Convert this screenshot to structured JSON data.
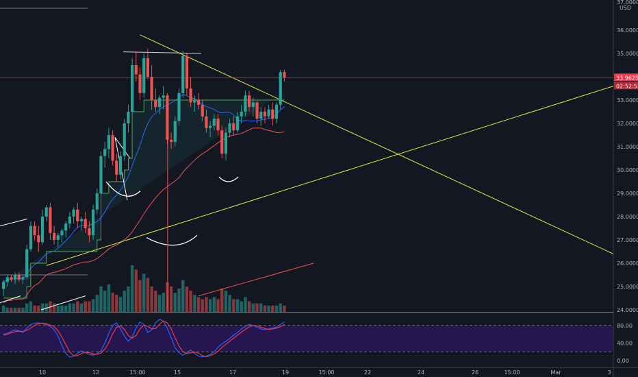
{
  "header": {
    "top_price_label": "37.00000",
    "currency_label": "USD"
  },
  "colors": {
    "background": "#131722",
    "up": "#26a69a",
    "down": "#ef5350",
    "trendline": "#e8e84a",
    "fast_ma": "#2962ff",
    "slow_ma": "#ef5350",
    "stoch_k": "#2962ff",
    "stoch_d": "#f23645",
    "stoch_band": "#2a1657",
    "last_price_bg": "#f23645"
  },
  "chart_data": [
    {
      "type": "candlestick",
      "price_axis": {
        "ticks": [
          "36.00000",
          "35.00000",
          "34.00000",
          "33.00000",
          "32.00000",
          "31.00000",
          "30.00000",
          "29.00000",
          "28.00000",
          "27.00000",
          "26.00000",
          "25.00000",
          "24.00000"
        ],
        "range": [
          24,
          37
        ]
      },
      "time_axis": {
        "ticks": [
          "10",
          "12",
          "15:00",
          "15",
          "17",
          "19",
          "15:00",
          "22",
          "24",
          "26",
          "15:00",
          "Mar",
          "3"
        ]
      },
      "last_price": {
        "value": "33.96258",
        "countdown": "02:52:52"
      },
      "candles": [
        [
          24.9,
          25.3,
          24.6,
          25.2
        ],
        [
          25.2,
          25.5,
          25.0,
          25.4
        ],
        [
          25.4,
          25.5,
          25.2,
          25.3
        ],
        [
          25.3,
          25.6,
          25.1,
          25.5
        ],
        [
          25.5,
          25.6,
          25.2,
          25.3
        ],
        [
          25.3,
          25.5,
          25.1,
          25.4
        ],
        [
          25.4,
          26.8,
          25.3,
          26.6
        ],
        [
          26.6,
          27.8,
          26.5,
          27.6
        ],
        [
          27.6,
          27.8,
          27.0,
          27.2
        ],
        [
          27.2,
          27.6,
          26.5,
          26.9
        ],
        [
          26.9,
          28.3,
          26.8,
          28.0
        ],
        [
          28.0,
          28.5,
          27.8,
          28.4
        ],
        [
          28.4,
          28.6,
          27.0,
          27.3
        ],
        [
          27.3,
          27.6,
          26.8,
          27.0
        ],
        [
          27.0,
          27.3,
          26.7,
          27.2
        ],
        [
          27.2,
          27.5,
          26.9,
          27.4
        ],
        [
          27.4,
          27.8,
          27.1,
          27.7
        ],
        [
          27.7,
          28.2,
          27.5,
          28.0
        ],
        [
          28.0,
          28.4,
          27.7,
          28.3
        ],
        [
          28.3,
          28.6,
          27.5,
          27.8
        ],
        [
          27.8,
          28.0,
          27.4,
          27.9
        ],
        [
          27.9,
          28.2,
          27.3,
          27.5
        ],
        [
          27.5,
          27.8,
          26.9,
          27.2
        ],
        [
          27.2,
          28.5,
          27.0,
          28.3
        ],
        [
          28.3,
          29.2,
          28.1,
          29.0
        ],
        [
          29.0,
          30.8,
          28.9,
          30.6
        ],
        [
          30.6,
          31.2,
          30.1,
          30.9
        ],
        [
          30.9,
          31.8,
          30.5,
          31.5
        ],
        [
          31.5,
          31.7,
          30.2,
          30.4
        ],
        [
          30.4,
          30.7,
          29.5,
          29.8
        ],
        [
          29.8,
          30.8,
          29.6,
          30.6
        ],
        [
          30.6,
          32.2,
          30.4,
          32.0
        ],
        [
          32.0,
          32.8,
          31.6,
          32.5
        ],
        [
          32.5,
          34.8,
          32.3,
          34.5
        ],
        [
          34.5,
          35.1,
          33.8,
          34.1
        ],
        [
          34.1,
          34.4,
          33.0,
          33.3
        ],
        [
          33.3,
          35.0,
          33.1,
          34.8
        ],
        [
          34.8,
          35.2,
          33.9,
          34.0
        ],
        [
          34.0,
          34.5,
          32.6,
          33.0
        ],
        [
          33.0,
          33.5,
          32.5,
          32.7
        ],
        [
          32.7,
          33.2,
          32.4,
          33.1
        ],
        [
          33.1,
          33.6,
          32.6,
          33.2
        ],
        [
          33.2,
          33.3,
          31.1,
          31.3
        ],
        [
          31.3,
          31.6,
          30.9,
          31.2
        ],
        [
          31.2,
          32.3,
          31.0,
          32.1
        ],
        [
          32.1,
          33.5,
          31.9,
          33.3
        ],
        [
          33.3,
          35.1,
          33.1,
          34.9
        ],
        [
          34.9,
          35.0,
          33.2,
          33.5
        ],
        [
          33.5,
          34.0,
          32.7,
          32.9
        ],
        [
          32.9,
          33.2,
          32.5,
          33.0
        ],
        [
          33.0,
          33.3,
          32.6,
          32.8
        ],
        [
          32.8,
          33.0,
          32.1,
          32.3
        ],
        [
          32.3,
          32.6,
          31.6,
          31.8
        ],
        [
          31.8,
          32.1,
          31.4,
          31.9
        ],
        [
          31.9,
          32.4,
          31.7,
          32.2
        ],
        [
          32.2,
          32.4,
          31.5,
          31.7
        ],
        [
          31.7,
          31.9,
          30.5,
          30.7
        ],
        [
          30.7,
          31.8,
          30.4,
          31.6
        ],
        [
          31.6,
          32.2,
          31.4,
          32.0
        ],
        [
          32.0,
          32.3,
          31.5,
          31.7
        ],
        [
          31.7,
          32.5,
          31.6,
          32.3
        ],
        [
          32.3,
          32.8,
          32.0,
          32.5
        ],
        [
          32.5,
          33.4,
          32.3,
          33.2
        ],
        [
          33.2,
          33.4,
          32.5,
          32.7
        ],
        [
          32.7,
          33.1,
          32.3,
          32.9
        ],
        [
          32.9,
          33.0,
          32.0,
          32.2
        ],
        [
          32.2,
          32.7,
          31.9,
          32.5
        ],
        [
          32.5,
          32.7,
          32.0,
          32.3
        ],
        [
          32.3,
          32.8,
          32.2,
          32.6
        ],
        [
          32.6,
          32.9,
          31.9,
          32.2
        ],
        [
          32.2,
          32.9,
          32.0,
          32.8
        ],
        [
          32.8,
          34.3,
          32.6,
          34.2
        ],
        [
          34.2,
          34.3,
          33.8,
          33.96
        ]
      ],
      "volumes": [
        3,
        2,
        2,
        2,
        2,
        2,
        4,
        5,
        3,
        3,
        4,
        4,
        5,
        4,
        3,
        3,
        3,
        4,
        4,
        5,
        4,
        5,
        5,
        6,
        8,
        12,
        10,
        13,
        9,
        8,
        7,
        10,
        12,
        22,
        20,
        15,
        18,
        16,
        12,
        10,
        8,
        9,
        14,
        12,
        9,
        11,
        15,
        12,
        10,
        8,
        7,
        6,
        7,
        6,
        7,
        6,
        11,
        10,
        8,
        6,
        6,
        5,
        7,
        5,
        4,
        4,
        4,
        3,
        3,
        3,
        3,
        4,
        3
      ]
    },
    {
      "type": "line",
      "name": "Stochastic",
      "y_ticks": [
        "80.00",
        "40.00",
        "0.00"
      ],
      "range": [
        0,
        100
      ],
      "band": [
        20,
        80
      ],
      "k": [
        60,
        62,
        66,
        70,
        68,
        64,
        74,
        82,
        85,
        86,
        84,
        82,
        78,
        70,
        56,
        34,
        16,
        8,
        10,
        16,
        22,
        18,
        14,
        12,
        16,
        22,
        40,
        62,
        80,
        86,
        72,
        56,
        44,
        54,
        74,
        88,
        82,
        64,
        70,
        86,
        94,
        90,
        74,
        52,
        30,
        18,
        12,
        18,
        24,
        16,
        10,
        8,
        10,
        14,
        20,
        30,
        38,
        44,
        50,
        58,
        64,
        72,
        78,
        82,
        80,
        76,
        72,
        70,
        72,
        74,
        76,
        82,
        88
      ],
      "d": [
        58,
        60,
        63,
        66,
        67,
        66,
        69,
        74,
        80,
        84,
        85,
        84,
        81,
        77,
        68,
        53,
        36,
        19,
        11,
        11,
        16,
        19,
        18,
        15,
        14,
        17,
        26,
        41,
        61,
        76,
        79,
        71,
        57,
        51,
        57,
        72,
        81,
        78,
        72,
        73,
        83,
        90,
        86,
        72,
        52,
        33,
        20,
        16,
        18,
        19,
        17,
        11,
        9,
        11,
        15,
        21,
        30,
        37,
        44,
        51,
        58,
        65,
        71,
        77,
        80,
        79,
        76,
        73,
        71,
        72,
        74,
        77,
        82
      ]
    }
  ]
}
